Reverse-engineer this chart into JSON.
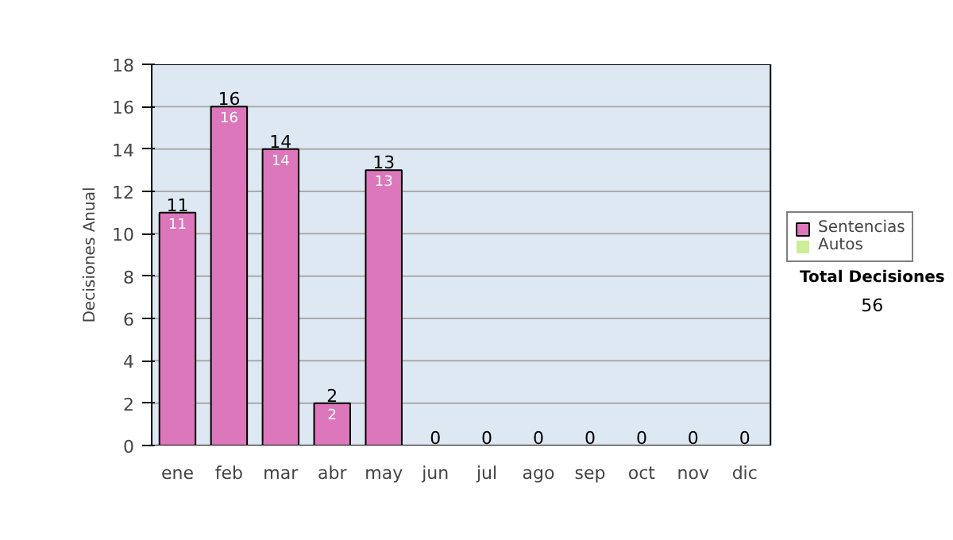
{
  "chart_data": {
    "type": "bar",
    "ylabel": "Decisiones Anual",
    "categories": [
      "ene",
      "feb",
      "mar",
      "abr",
      "may",
      "jun",
      "jul",
      "ago",
      "sep",
      "oct",
      "nov",
      "dic"
    ],
    "series": [
      {
        "name": "Sentencias",
        "color": "#dd77bb",
        "values": [
          11,
          16,
          14,
          2,
          13,
          0,
          0,
          0,
          0,
          0,
          0,
          0
        ],
        "value_labels": [
          "11",
          "16",
          "14",
          "2",
          "13",
          null,
          null,
          null,
          null,
          null,
          null,
          null
        ]
      },
      {
        "name": "Autos",
        "color": "#ccee99",
        "values": [
          0,
          0,
          0,
          0,
          0,
          0,
          0,
          0,
          0,
          0,
          0,
          0
        ]
      }
    ],
    "stacked": true,
    "totals": [
      "11",
      "16",
      "14",
      "2",
      "13",
      "0",
      "0",
      "0",
      "0",
      "0",
      "0",
      "0"
    ],
    "ylim": [
      0,
      18
    ],
    "yticks": [
      0,
      2,
      4,
      6,
      8,
      10,
      12,
      14,
      16,
      18
    ],
    "grid": "y",
    "legend": "right",
    "annotations": [
      "Total Decisiones",
      "56"
    ]
  }
}
